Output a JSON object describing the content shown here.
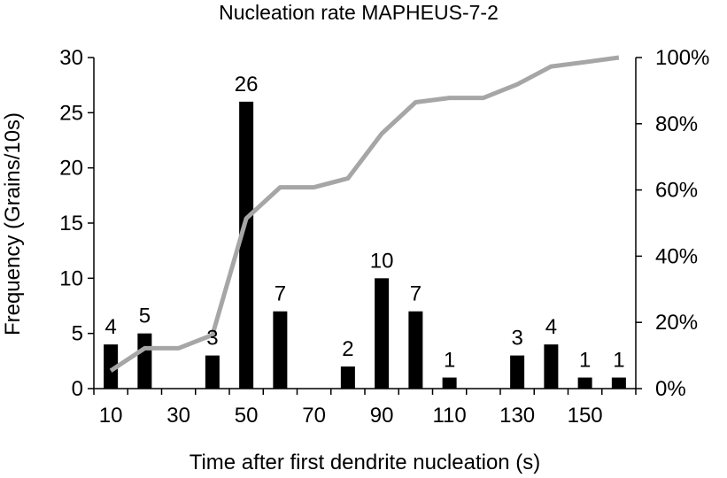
{
  "chart_data": {
    "type": "bar",
    "title": "Nucleation rate MAPHEUS-7-2",
    "xlabel": "Time after first dendrite nucleation (s)",
    "ylabel": "Frequency (Grains/10s)",
    "x": [
      10,
      20,
      30,
      40,
      50,
      60,
      70,
      80,
      90,
      100,
      110,
      120,
      130,
      140,
      150,
      160
    ],
    "x_tick_labels": [
      "10",
      "30",
      "50",
      "70",
      "90",
      "110",
      "130",
      "150"
    ],
    "ylim": [
      0,
      30
    ],
    "y_ticks": [
      0,
      5,
      10,
      15,
      20,
      25,
      30
    ],
    "y2lim": [
      0,
      100
    ],
    "y2_tick_labels": [
      "0%",
      "20%",
      "40%",
      "60%",
      "80%",
      "100%"
    ],
    "series": [
      {
        "kind": "bar",
        "color": "#000000",
        "values": [
          4,
          5,
          0,
          3,
          26,
          7,
          0,
          2,
          10,
          7,
          1,
          0,
          3,
          4,
          1,
          1
        ],
        "labels": [
          "4",
          "5",
          "",
          "3",
          "26",
          "7",
          "",
          "2",
          "10",
          "7",
          "1",
          "",
          "3",
          "4",
          "1",
          "1"
        ]
      },
      {
        "kind": "line",
        "axis": "secondary",
        "color": "#a6a6a6",
        "values": [
          5.4,
          12.2,
          12.2,
          16.2,
          51.4,
          60.8,
          60.8,
          63.5,
          77.0,
          86.5,
          87.8,
          87.8,
          91.9,
          97.3,
          98.6,
          100
        ]
      }
    ],
    "grid": false,
    "legend": "none"
  }
}
